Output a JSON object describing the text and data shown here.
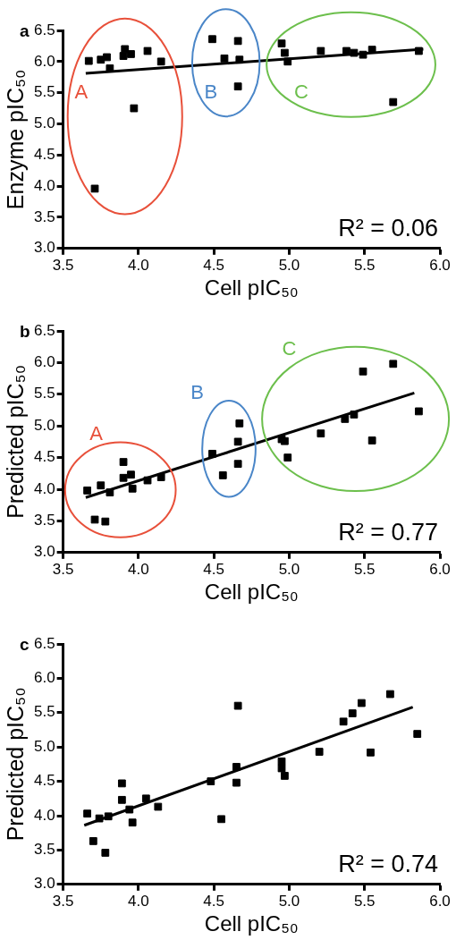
{
  "chart_data": [
    {
      "type": "scatter",
      "title": "a",
      "xlabel": "Cell pIC₅₀",
      "ylabel": "Enzyme pIC₅₀",
      "xlim": [
        3.5,
        6.0
      ],
      "ylim": [
        3.0,
        6.5
      ],
      "xticks": [
        {
          "value": 3.5,
          "label": "3.5"
        },
        {
          "value": 4,
          "label": "4.0"
        },
        {
          "value": 4.5,
          "label": "4.5"
        },
        {
          "value": 5,
          "label": "5.0"
        },
        {
          "value": 5.5,
          "label": "5.5"
        },
        {
          "value": 6,
          "label": "6.0"
        }
      ],
      "yticks": [
        {
          "value": 3,
          "label": "3.0"
        },
        {
          "value": 3.5,
          "label": "3.5"
        },
        {
          "value": 4,
          "label": "4.0"
        },
        {
          "value": 4.5,
          "label": "4.5"
        },
        {
          "value": 5,
          "label": "5.0"
        },
        {
          "value": 5.5,
          "label": "5.5"
        },
        {
          "value": 6,
          "label": "6.0"
        },
        {
          "value": 6.5,
          "label": "6.5"
        }
      ],
      "grid": false,
      "legend": false,
      "marker": "square",
      "series": [
        {
          "color": "#000000",
          "x": [
            3.67,
            3.75,
            3.79,
            3.81,
            3.91,
            3.9,
            3.95,
            4.06,
            4.15,
            3.97,
            3.71,
            4.49,
            4.57,
            4.66,
            4.67,
            4.66,
            4.95,
            4.97,
            4.99,
            5.21,
            5.38,
            5.43,
            5.49,
            5.55,
            5.86,
            5.69
          ],
          "values": [
            6.01,
            6.03,
            6.07,
            5.89,
            6.2,
            6.09,
            6.12,
            6.17,
            6.0,
            5.25,
            3.96,
            6.36,
            6.05,
            6.33,
            6.03,
            5.6,
            6.29,
            6.14,
            6.0,
            6.17,
            6.17,
            6.14,
            6.11,
            6.19,
            6.17,
            5.35
          ]
        },
        {
          "type": "line",
          "marker": "none",
          "color": "#000000",
          "x": [
            3.65,
            5.89
          ],
          "values": [
            5.81,
            6.2
          ]
        }
      ],
      "annotations": [
        "R² = 0.06",
        "A",
        "B",
        "C"
      ]
    },
    {
      "type": "scatter",
      "title": "b",
      "xlabel": "Cell pIC₅₀",
      "ylabel": "Predicted pIC₅₀",
      "xlim": [
        3.5,
        6.0
      ],
      "ylim": [
        3.0,
        6.5
      ],
      "xticks": [
        {
          "value": 3.5,
          "label": "3.5"
        },
        {
          "value": 4,
          "label": "4.0"
        },
        {
          "value": 4.5,
          "label": "4.5"
        },
        {
          "value": 5,
          "label": "5.0"
        },
        {
          "value": 5.5,
          "label": "5.5"
        },
        {
          "value": 6,
          "label": "6.0"
        }
      ],
      "yticks": [
        {
          "value": 3,
          "label": "3.0"
        },
        {
          "value": 3.5,
          "label": "3.5"
        },
        {
          "value": 4,
          "label": "4.0"
        },
        {
          "value": 4.5,
          "label": "4.5"
        },
        {
          "value": 5,
          "label": "5.0"
        },
        {
          "value": 5.5,
          "label": "5.5"
        },
        {
          "value": 6,
          "label": "6.0"
        },
        {
          "value": 6.5,
          "label": "6.5"
        }
      ],
      "grid": false,
      "legend": false,
      "marker": "square",
      "series": [
        {
          "color": "#000000",
          "x": [
            3.66,
            3.75,
            3.81,
            3.9,
            3.9,
            3.95,
            3.96,
            4.06,
            4.15,
            3.71,
            3.78,
            4.49,
            4.56,
            4.66,
            4.66,
            4.67,
            4.95,
            4.97,
            4.99,
            5.21,
            5.37,
            5.43,
            5.49,
            5.55,
            5.69,
            5.86
          ],
          "values": [
            3.98,
            4.06,
            3.95,
            4.43,
            4.18,
            4.23,
            4.01,
            4.14,
            4.19,
            3.52,
            3.49,
            4.56,
            4.22,
            4.4,
            4.75,
            5.04,
            4.79,
            4.76,
            4.5,
            4.88,
            5.11,
            5.18,
            5.86,
            4.77,
            5.98,
            5.23
          ]
        },
        {
          "type": "line",
          "marker": "none",
          "color": "#000000",
          "x": [
            3.65,
            5.83
          ],
          "values": [
            3.87,
            5.52
          ]
        }
      ],
      "annotations": [
        "R² = 0.77",
        "A",
        "B",
        "C"
      ]
    },
    {
      "type": "scatter",
      "title": "c",
      "xlabel": "Cell pIC₅₀",
      "ylabel": "Predicted pIC₅₀",
      "xlim": [
        3.5,
        6.0
      ],
      "ylim": [
        3.0,
        6.5
      ],
      "xticks": [
        {
          "value": 3.5,
          "label": "3.5"
        },
        {
          "value": 4,
          "label": "4.0"
        },
        {
          "value": 4.5,
          "label": "4.5"
        },
        {
          "value": 5,
          "label": "5.0"
        },
        {
          "value": 5.5,
          "label": "5.5"
        },
        {
          "value": 6,
          "label": "6.0"
        }
      ],
      "yticks": [
        {
          "value": 3,
          "label": "3.0"
        },
        {
          "value": 3.5,
          "label": "3.5"
        },
        {
          "value": 4,
          "label": "4.0"
        },
        {
          "value": 4.5,
          "label": "4.5"
        },
        {
          "value": 5,
          "label": "5.0"
        },
        {
          "value": 5.5,
          "label": "5.5"
        },
        {
          "value": 6,
          "label": "6.0"
        },
        {
          "value": 6.5,
          "label": "6.5"
        }
      ],
      "grid": false,
      "legend": false,
      "marker": "square",
      "series": [
        {
          "color": "#000000",
          "x": [
            3.66,
            3.74,
            3.8,
            3.89,
            3.89,
            3.94,
            3.96,
            4.05,
            4.13,
            3.7,
            3.78,
            4.48,
            4.55,
            4.65,
            4.65,
            4.66,
            4.95,
            4.95,
            4.97,
            5.2,
            5.36,
            5.42,
            5.48,
            5.54,
            5.67,
            5.85
          ],
          "values": [
            4.03,
            3.96,
            3.99,
            4.47,
            4.23,
            4.09,
            3.9,
            4.25,
            4.13,
            3.63,
            3.46,
            4.5,
            3.95,
            4.71,
            4.48,
            5.6,
            4.79,
            4.69,
            4.58,
            4.93,
            5.37,
            5.49,
            5.64,
            4.92,
            5.77,
            5.19
          ]
        },
        {
          "type": "line",
          "marker": "none",
          "color": "#000000",
          "x": [
            3.64,
            5.82
          ],
          "values": [
            3.86,
            5.58
          ]
        }
      ],
      "annotations": [
        "R² = 0.74"
      ]
    }
  ]
}
